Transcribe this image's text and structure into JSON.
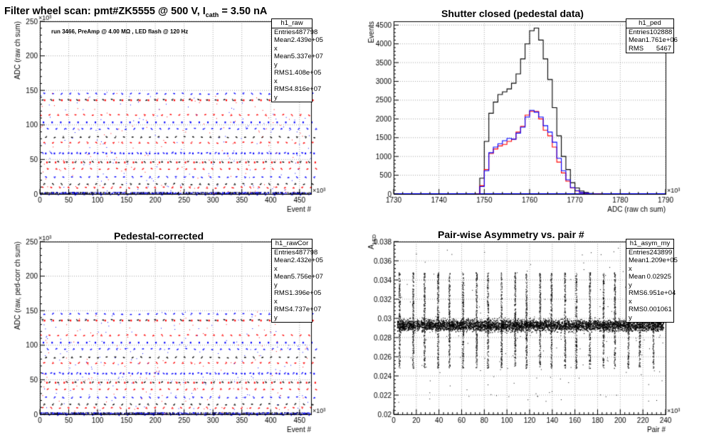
{
  "main_title": {
    "prefix": "Filter wheel scan: pmt#ZK5555 @   500 V, I",
    "sub": "cath",
    "suffix": "= 3.50 nA"
  },
  "chart_data": [
    {
      "type": "scatter",
      "title": "",
      "xlabel": "Event #",
      "ylabel": "ADC (raw ch sum)",
      "x_multiplier": "×10³",
      "y_multiplier": "×10³",
      "xlim": [
        0,
        470
      ],
      "ylim": [
        0,
        250
      ],
      "xticks": [
        0,
        50,
        100,
        150,
        200,
        250,
        300,
        350,
        400,
        450
      ],
      "yticks": [
        0,
        50,
        100,
        150,
        200,
        250
      ],
      "annotation": "run 3466, PreAmp @ 4.00 MΩ , LED flash @  120 Hz",
      "levels": [
        0,
        10,
        15,
        25,
        37,
        47,
        60,
        75,
        83,
        95,
        115,
        137,
        146
      ],
      "series_colors": {
        "A": "#0000ff",
        "B": "#ff0000",
        "C": "#000000"
      },
      "stats": {
        "name": "h1_raw",
        "rows": [
          [
            "Entries",
            "487798"
          ],
          [
            "Mean x",
            "2.439e+05"
          ],
          [
            "Mean y",
            "5.337e+07"
          ],
          [
            "RMS x",
            "1.408e+05"
          ],
          [
            "RMS y",
            "4.816e+07"
          ]
        ]
      }
    },
    {
      "type": "line",
      "title": "Shutter closed (pedestal data)",
      "xlabel": "ADC (raw ch sum)",
      "ylabel": "Events",
      "x_multiplier": "×10³",
      "xlim": [
        1730,
        1790
      ],
      "ylim": [
        0,
        4600
      ],
      "xticks": [
        1730,
        1740,
        1750,
        1760,
        1770,
        1780,
        1790
      ],
      "yticks": [
        0,
        500,
        1000,
        1500,
        2000,
        2500,
        3000,
        3500,
        4000,
        4500
      ],
      "x": [
        1748,
        1749,
        1750,
        1751,
        1752,
        1753,
        1754,
        1755,
        1756,
        1757,
        1758,
        1759,
        1760,
        1761,
        1762,
        1763,
        1764,
        1765,
        1766,
        1767,
        1768,
        1769,
        1770,
        1771,
        1772,
        1773,
        1774,
        1775
      ],
      "series": [
        {
          "color": "#000000",
          "values": [
            0,
            420,
            1400,
            2150,
            2450,
            2650,
            2720,
            2800,
            2950,
            3200,
            3600,
            4000,
            4350,
            4420,
            4100,
            3600,
            3050,
            2300,
            1550,
            1000,
            650,
            300,
            160,
            80,
            40,
            15,
            5,
            0
          ]
        },
        {
          "color": "#ff0000",
          "values": [
            0,
            220,
            650,
            1080,
            1200,
            1280,
            1320,
            1400,
            1460,
            1650,
            1800,
            2100,
            2200,
            2200,
            2000,
            1700,
            1550,
            1250,
            850,
            560,
            340,
            160,
            80,
            40,
            20,
            8,
            3,
            0
          ]
        },
        {
          "color": "#0000ff",
          "values": [
            0,
            200,
            620,
            1100,
            1250,
            1340,
            1420,
            1480,
            1460,
            1620,
            1780,
            2050,
            2230,
            2180,
            2050,
            1820,
            1650,
            1380,
            950,
            620,
            380,
            170,
            90,
            45,
            22,
            9,
            3,
            0
          ]
        }
      ],
      "stats": {
        "name": "h1_ped",
        "rows": [
          [
            "Entries",
            "102888"
          ],
          [
            "Mean",
            "1.761e+06"
          ],
          [
            "RMS",
            "5467"
          ]
        ]
      }
    },
    {
      "type": "scatter",
      "title": "Pedestal-corrected",
      "xlabel": "Event #",
      "ylabel": "ADC (raw, ped-corr ch sum)",
      "x_multiplier": "×10³",
      "y_multiplier": "×10³",
      "xlim": [
        0,
        470
      ],
      "ylim": [
        0,
        250
      ],
      "xticks": [
        0,
        50,
        100,
        150,
        200,
        250,
        300,
        350,
        400,
        450
      ],
      "yticks": [
        0,
        50,
        100,
        150,
        200,
        250
      ],
      "levels": [
        0,
        10,
        15,
        25,
        37,
        47,
        60,
        75,
        83,
        95,
        115,
        137,
        146
      ],
      "series_colors": {
        "A": "#0000ff",
        "B": "#ff0000",
        "C": "#000000"
      },
      "stats": {
        "name": "h1_rawCor",
        "rows": [
          [
            "Entries",
            "487798"
          ],
          [
            "Mean x",
            "2.432e+05"
          ],
          [
            "Mean y",
            "5.756e+07"
          ],
          [
            "RMS x",
            "1.396e+05"
          ],
          [
            "RMS y",
            "4.737e+07"
          ]
        ]
      }
    },
    {
      "type": "scatter",
      "title": "Pair-wise Asymmetry vs. pair #",
      "xlabel": "Pair #",
      "ylabel": "A_LED",
      "x_multiplier": "×10³",
      "xlim": [
        0,
        240
      ],
      "ylim": [
        0.02,
        0.038
      ],
      "xticks": [
        0,
        20,
        40,
        60,
        80,
        100,
        120,
        140,
        160,
        180,
        200,
        220,
        240
      ],
      "yticks": [
        0.02,
        0.022,
        0.024,
        0.026,
        0.028,
        0.03,
        0.032,
        0.034,
        0.036,
        0.038
      ],
      "band_center": 0.0293,
      "spike_x": [
        5,
        17,
        27,
        39,
        49,
        61,
        73,
        83,
        95,
        107,
        117,
        129,
        139,
        151,
        161,
        173,
        185,
        195,
        207,
        217,
        229
      ],
      "series_colors": {
        "A": "#000000"
      },
      "stats": {
        "name": "h1_asym_my",
        "rows": [
          [
            "Entries",
            "243899"
          ],
          [
            "Mean x",
            "1.209e+05"
          ],
          [
            "Mean y",
            "0.02925"
          ],
          [
            "RMS x",
            "6.951e+04"
          ],
          [
            "RMS y",
            "0.001061"
          ]
        ]
      }
    }
  ]
}
